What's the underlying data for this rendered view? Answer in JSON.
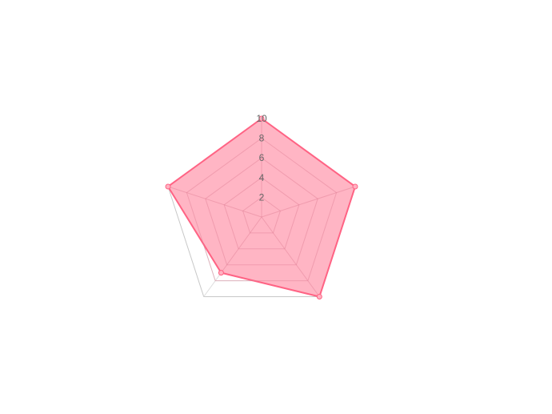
{
  "chart_data": {
    "type": "radar",
    "axes_count": 5,
    "r_range": [
      0,
      10
    ],
    "r_ticks": [
      2,
      4,
      6,
      8,
      10
    ],
    "tick_labels": [
      "2",
      "4",
      "6",
      "8",
      "10"
    ],
    "grid": true,
    "series": [
      {
        "values": [
          10,
          10,
          10,
          7,
          10
        ],
        "fill_color": "#ff6384",
        "fill_opacity": 0.55,
        "line_color": "#ff6384"
      }
    ]
  },
  "colors": {
    "grid": "#dddddd",
    "outer_grid": "#c8c8c8",
    "series_fill": "#ffb1c1",
    "series_line": "#ff6384",
    "tick_text": "#666666"
  }
}
